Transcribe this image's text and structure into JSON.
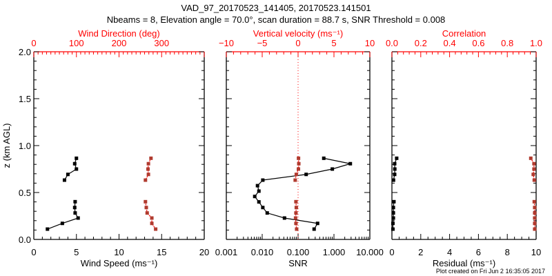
{
  "title": "VAD_97_20170523_141405, 20170523.141501",
  "subtitle": "Nbeams = 8, Elevation angle = 70.0°, scan duration = 88.7 s, SNR Threshold = 0.008",
  "footer": "Plot created on Fri Jun  2 16:35:05 2017",
  "colors": {
    "primary": "#000000",
    "secondary": "#ff0000",
    "secondary_marker": "#b03a2e"
  },
  "chart_data": [
    {
      "type": "line",
      "ylabel": "z (km AGL)",
      "ylim": [
        0,
        2.0
      ],
      "yticks": [
        "0.0",
        "0.5",
        "1.0",
        "1.5",
        "2.0"
      ],
      "xlabel": "Wind Speed (ms⁻¹)",
      "xlim": [
        0,
        20
      ],
      "xticks": [
        "0",
        "5",
        "10",
        "15",
        "20"
      ],
      "x2label": "Wind Direction (deg)",
      "x2lim": [
        0,
        400
      ],
      "x2ticks": [
        "0",
        "100",
        "200",
        "300"
      ],
      "z": [
        0.865,
        0.807,
        0.75,
        0.693,
        0.632,
        null,
        0.402,
        0.34,
        0.282,
        0.228,
        0.171,
        0.11
      ],
      "series": [
        {
          "name": "Wind Speed",
          "axis": "bottom",
          "values": [
            5.0,
            4.8,
            5.0,
            4.0,
            3.6,
            null,
            4.85,
            4.8,
            4.85,
            5.2,
            3.35,
            1.6
          ]
        },
        {
          "name": "Wind Direction",
          "axis": "top",
          "values": [
            275,
            269,
            268,
            269,
            262,
            null,
            262,
            264,
            266,
            277,
            277,
            286
          ]
        }
      ]
    },
    {
      "type": "line",
      "xlabel": "SNR",
      "xscale": "log",
      "xlim": [
        0.001,
        10
      ],
      "xticks": [
        "0.001",
        "0.010",
        "0.100",
        "1.000",
        "10.000"
      ],
      "x2label": "Vertical velocity (ms⁻¹)",
      "x2lim": [
        -10,
        10
      ],
      "x2ticks": [
        "−10",
        "−5",
        "0",
        "5",
        "10"
      ],
      "series": [
        {
          "name": "SNR",
          "axis": "bottom",
          "z": [
            0.865,
            0.807,
            0.75,
            0.693,
            0.632,
            0.573,
            0.515,
            0.458,
            0.4,
            0.34,
            0.282,
            0.228,
            0.171,
            0.11
          ],
          "values": [
            0.52,
            2.86,
            0.9,
            0.168,
            0.0104,
            0.0074,
            0.0081,
            0.0062,
            0.0081,
            0.0104,
            0.0138,
            0.0418,
            0.35,
            0.28
          ]
        },
        {
          "name": "Vertical velocity",
          "axis": "top",
          "z": [
            0.865,
            0.807,
            0.75,
            0.693,
            0.632,
            null,
            0.402,
            0.34,
            0.282,
            0.228,
            0.171,
            0.11
          ],
          "values": [
            0.06,
            0.1,
            0.05,
            -0.25,
            -0.4,
            null,
            -0.3,
            -0.25,
            -0.3,
            -0.35,
            -0.3,
            -0.2
          ]
        }
      ]
    },
    {
      "type": "line",
      "xlabel": "Residual (ms⁻¹)",
      "xlim": [
        0,
        10
      ],
      "xticks": [
        "0",
        "2",
        "4",
        "6",
        "8",
        "10"
      ],
      "x2label": "Correlation",
      "x2lim": [
        0,
        1.0
      ],
      "x2ticks": [
        "0.0",
        "0.2",
        "0.4",
        "0.6",
        "0.8",
        "1.0"
      ],
      "z": [
        0.865,
        0.807,
        0.75,
        0.693,
        0.632,
        null,
        0.402,
        0.34,
        0.282,
        0.228,
        0.171,
        0.11
      ],
      "series": [
        {
          "name": "Residual",
          "axis": "bottom",
          "values": [
            0.33,
            0.19,
            0.2,
            0.19,
            0.11,
            null,
            0.14,
            0.1,
            0.1,
            0.1,
            0.07,
            0.07
          ]
        },
        {
          "name": "Correlation",
          "axis": "top",
          "values": [
            0.963,
            0.985,
            0.985,
            0.98,
            0.987,
            null,
            0.987,
            0.99,
            0.99,
            0.99,
            0.99,
            0.99
          ]
        }
      ]
    }
  ]
}
